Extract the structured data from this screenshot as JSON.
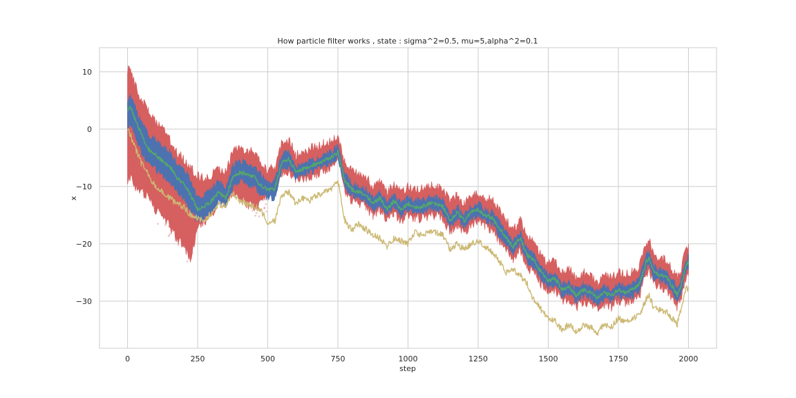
{
  "chart_data": {
    "type": "line",
    "title": "How particle filter works , state : sigma^2=0.5, mu=5,alpha^2=0.1",
    "xlabel": "step",
    "ylabel": "x",
    "xlim": [
      -100,
      2100
    ],
    "ylim": [
      -38.2,
      14.2
    ],
    "xticks": [
      0,
      250,
      500,
      750,
      1000,
      1250,
      1500,
      1750,
      2000
    ],
    "yticks": [
      10,
      0,
      -10,
      -20,
      -30
    ],
    "grid": true,
    "legend": "none",
    "x": [
      0,
      10,
      25,
      50,
      75,
      100,
      125,
      150,
      175,
      200,
      225,
      250,
      275,
      300,
      325,
      350,
      375,
      400,
      425,
      450,
      475,
      500,
      525,
      550,
      575,
      600,
      625,
      650,
      675,
      700,
      725,
      750,
      775,
      800,
      825,
      850,
      875,
      900,
      925,
      950,
      975,
      1000,
      1025,
      1050,
      1075,
      1100,
      1125,
      1150,
      1175,
      1200,
      1225,
      1250,
      1275,
      1300,
      1325,
      1350,
      1375,
      1400,
      1425,
      1450,
      1475,
      1500,
      1525,
      1550,
      1575,
      1600,
      1625,
      1650,
      1675,
      1700,
      1725,
      1750,
      1775,
      1800,
      1825,
      1850,
      1860,
      1875,
      1900,
      1925,
      1950,
      1960,
      1975,
      1990,
      2000
    ],
    "series": [
      {
        "role": "particles",
        "color": "#d65f5f",
        "upper": [
          10.0,
          11.0,
          8.0,
          5.0,
          3.0,
          1.0,
          0.0,
          -2.0,
          -4.0,
          -5.0,
          -7.0,
          -8.0,
          -9.0,
          -8.0,
          -7.0,
          -7.5,
          -4.0,
          -3.0,
          -4.0,
          -4.0,
          -6.0,
          -7.0,
          -7.0,
          -2.5,
          -2.0,
          -4.5,
          -4.0,
          -3.5,
          -3.0,
          -2.5,
          -2.0,
          -1.0,
          -6.0,
          -7.5,
          -8.0,
          -8.5,
          -10.0,
          -9.0,
          -11.0,
          -9.5,
          -11.0,
          -10.0,
          -10.5,
          -10.5,
          -10.0,
          -10.0,
          -10.5,
          -13.0,
          -11.5,
          -13.0,
          -11.5,
          -11.0,
          -12.0,
          -12.5,
          -14.0,
          -16.0,
          -17.5,
          -16.0,
          -19.0,
          -20.0,
          -22.0,
          -23.5,
          -23.0,
          -25.0,
          -24.5,
          -26.0,
          -25.0,
          -25.5,
          -27.0,
          -25.5,
          -26.0,
          -25.0,
          -25.5,
          -25.0,
          -24.0,
          -20.0,
          -19.5,
          -22.0,
          -22.5,
          -23.0,
          -25.0,
          -26.0,
          -24.0,
          -21.0,
          -20.0
        ],
        "lower": [
          -10.0,
          -8.0,
          -10.0,
          -11.0,
          -12.0,
          -14.0,
          -15.0,
          -17.0,
          -19.0,
          -20.0,
          -23.0,
          -17.0,
          -16.0,
          -15.0,
          -12.0,
          -13.0,
          -11.0,
          -12.0,
          -13.0,
          -13.5,
          -13.0,
          -11.0,
          -11.5,
          -7.5,
          -7.5,
          -9.0,
          -8.5,
          -8.5,
          -8.0,
          -7.5,
          -6.5,
          -5.0,
          -11.0,
          -12.5,
          -13.0,
          -13.5,
          -15.0,
          -14.0,
          -16.0,
          -14.5,
          -16.0,
          -15.0,
          -15.5,
          -15.5,
          -15.0,
          -15.0,
          -15.5,
          -18.0,
          -16.5,
          -18.0,
          -16.5,
          -16.0,
          -17.0,
          -17.5,
          -19.5,
          -21.0,
          -22.5,
          -21.0,
          -24.0,
          -25.0,
          -27.0,
          -28.5,
          -28.0,
          -30.0,
          -29.5,
          -31.0,
          -30.0,
          -30.5,
          -31.5,
          -30.5,
          -31.0,
          -30.0,
          -30.5,
          -30.0,
          -29.0,
          -25.0,
          -24.5,
          -27.0,
          -27.5,
          -28.0,
          -30.0,
          -31.0,
          -29.0,
          -26.0,
          -25.0
        ]
      },
      {
        "role": "estimate band",
        "color": "#4c72b0",
        "upper": [
          5.0,
          6.0,
          4.0,
          1.0,
          -1.0,
          -2.0,
          -3.0,
          -4.0,
          -6.0,
          -7.0,
          -9.0,
          -12.0,
          -11.5,
          -10.5,
          -9.0,
          -10.5,
          -6.5,
          -5.5,
          -6.0,
          -6.5,
          -8.0,
          -9.0,
          -9.0,
          -4.5,
          -4.0,
          -6.5,
          -6.0,
          -5.5,
          -5.0,
          -4.5,
          -4.0,
          -3.0,
          -8.0,
          -9.5,
          -10.0,
          -10.5,
          -12.0,
          -11.0,
          -13.0,
          -11.5,
          -13.0,
          -12.0,
          -12.5,
          -12.5,
          -12.0,
          -12.0,
          -12.5,
          -15.0,
          -13.5,
          -15.0,
          -13.5,
          -13.0,
          -14.0,
          -14.5,
          -16.0,
          -18.0,
          -19.5,
          -18.0,
          -21.0,
          -22.0,
          -24.0,
          -25.5,
          -25.0,
          -27.0,
          -26.5,
          -28.0,
          -27.0,
          -27.5,
          -28.5,
          -27.5,
          -28.0,
          -27.0,
          -27.5,
          -27.0,
          -26.0,
          -22.0,
          -21.5,
          -24.0,
          -24.5,
          -25.0,
          -27.0,
          -28.0,
          -26.0,
          -23.0,
          -22.0
        ],
        "lower": [
          0.0,
          1.0,
          -1.0,
          -4.0,
          -6.0,
          -7.0,
          -8.0,
          -9.0,
          -11.0,
          -12.0,
          -14.0,
          -16.0,
          -15.5,
          -14.5,
          -12.5,
          -13.5,
          -10.0,
          -9.0,
          -9.5,
          -10.0,
          -11.5,
          -12.0,
          -12.0,
          -7.0,
          -6.5,
          -8.5,
          -8.0,
          -7.5,
          -7.0,
          -6.5,
          -6.0,
          -5.0,
          -10.0,
          -11.5,
          -12.0,
          -12.5,
          -14.0,
          -13.0,
          -15.0,
          -13.5,
          -15.0,
          -14.0,
          -14.5,
          -14.5,
          -14.0,
          -14.0,
          -14.5,
          -17.0,
          -15.5,
          -17.0,
          -15.5,
          -15.0,
          -16.0,
          -16.5,
          -18.5,
          -20.0,
          -21.5,
          -20.0,
          -23.0,
          -24.0,
          -26.0,
          -27.5,
          -27.0,
          -29.0,
          -28.5,
          -30.0,
          -29.0,
          -29.5,
          -30.5,
          -29.5,
          -30.0,
          -29.0,
          -29.5,
          -29.0,
          -28.0,
          -24.0,
          -23.5,
          -26.0,
          -26.5,
          -27.0,
          -29.0,
          -30.0,
          -28.0,
          -25.0,
          -24.0
        ]
      },
      {
        "role": "estimate",
        "color": "#55a868",
        "values": [
          3.0,
          4.0,
          2.0,
          -1.0,
          -3.5,
          -4.5,
          -5.5,
          -6.5,
          -8.5,
          -9.5,
          -11.5,
          -14.0,
          -13.5,
          -12.5,
          -11.0,
          -12.0,
          -8.5,
          -7.5,
          -7.8,
          -8.2,
          -9.8,
          -10.5,
          -10.5,
          -5.8,
          -5.2,
          -7.5,
          -7.0,
          -6.5,
          -6.0,
          -5.5,
          -5.0,
          -4.0,
          -9.0,
          -10.5,
          -11.0,
          -11.5,
          -13.0,
          -12.0,
          -14.0,
          -12.5,
          -14.0,
          -13.0,
          -13.5,
          -13.5,
          -13.0,
          -13.0,
          -13.5,
          -16.0,
          -14.5,
          -16.0,
          -14.5,
          -14.0,
          -15.0,
          -15.5,
          -17.2,
          -19.0,
          -20.5,
          -19.0,
          -22.0,
          -23.0,
          -25.0,
          -26.5,
          -26.0,
          -28.0,
          -27.5,
          -29.0,
          -28.0,
          -28.5,
          -29.5,
          -28.5,
          -29.0,
          -28.0,
          -28.5,
          -28.0,
          -27.0,
          -23.0,
          -22.5,
          -25.0,
          -25.5,
          -26.0,
          -28.0,
          -29.0,
          -27.0,
          -24.0,
          -23.0
        ]
      },
      {
        "role": "observed",
        "color": "#ccb974",
        "values": [
          0.0,
          -1.0,
          -3.0,
          -6.0,
          -8.0,
          -10.0,
          -11.0,
          -12.0,
          -13.0,
          -13.5,
          -15.0,
          -15.5,
          -16.0,
          -14.5,
          -13.0,
          -13.5,
          -11.0,
          -12.5,
          -13.0,
          -13.5,
          -14.0,
          -16.5,
          -16.0,
          -11.5,
          -11.0,
          -13.0,
          -12.0,
          -12.5,
          -11.5,
          -11.0,
          -10.5,
          -9.0,
          -16.0,
          -17.5,
          -16.5,
          -17.5,
          -18.5,
          -19.0,
          -20.5,
          -19.0,
          -19.5,
          -20.0,
          -18.0,
          -18.5,
          -18.0,
          -18.0,
          -18.5,
          -21.0,
          -20.0,
          -21.0,
          -20.0,
          -19.5,
          -20.5,
          -21.5,
          -23.0,
          -25.0,
          -24.5,
          -25.5,
          -27.0,
          -30.0,
          -31.5,
          -33.0,
          -33.5,
          -35.0,
          -34.0,
          -35.5,
          -34.0,
          -34.5,
          -35.5,
          -34.0,
          -34.5,
          -33.0,
          -33.5,
          -33.0,
          -32.5,
          -29.5,
          -29.0,
          -31.0,
          -31.5,
          -32.0,
          -33.5,
          -34.0,
          -31.0,
          -28.0,
          -27.5
        ]
      }
    ]
  }
}
